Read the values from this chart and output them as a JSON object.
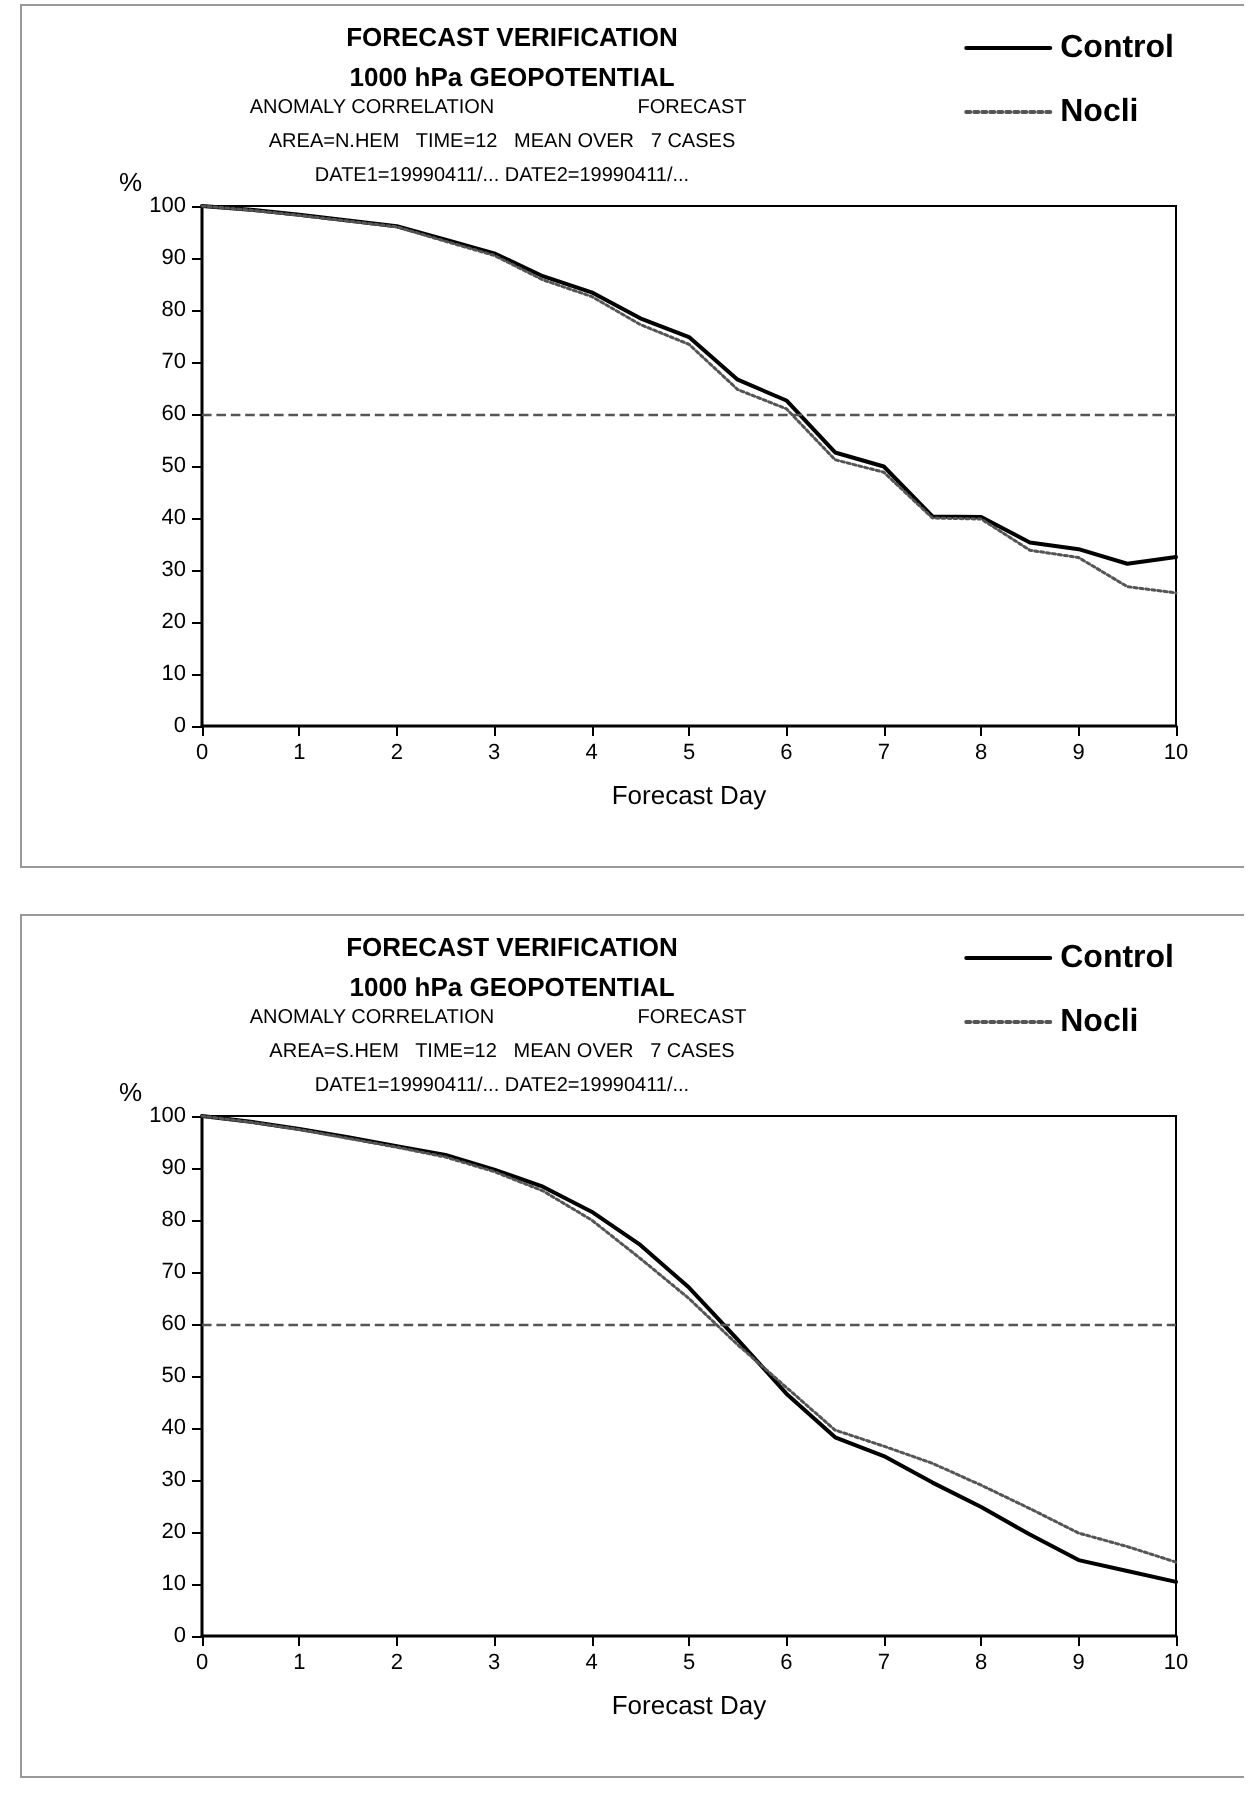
{
  "chart_data": [
    {
      "type": "line",
      "title": "FORECAST VERIFICATION",
      "subtitle": "1000 hPa GEOPOTENTIAL",
      "annotations": [
        "ANOMALY CORRELATION",
        "FORECAST",
        "AREA=N.HEM   TIME=12   MEAN OVER   7 CASES",
        "DATE1=19990411/... DATE2=19990411/..."
      ],
      "xlabel": "Forecast Day",
      "ylabel": "%",
      "x": [
        0,
        0.5,
        1,
        1.5,
        2,
        2.5,
        3,
        3.5,
        4,
        4.5,
        5,
        5.5,
        6,
        6.5,
        7,
        7.5,
        8,
        8.5,
        9,
        9.5,
        10
      ],
      "series": [
        {
          "name": "Control",
          "color": "#000000",
          "line_style": "solid",
          "values": [
            100,
            99.3,
            98.3,
            97.2,
            96.1,
            93.5,
            90.9,
            86.5,
            83.4,
            78.4,
            74.8,
            66.6,
            62.6,
            52.6,
            49.9,
            40.3,
            40.2,
            35.3,
            34.0,
            31.2,
            32.5
          ]
        },
        {
          "name": "Nocli",
          "color": "#555555",
          "line_style": "dotted",
          "values": [
            100,
            99.2,
            98.2,
            97.1,
            96.0,
            93.2,
            90.5,
            85.8,
            82.6,
            77.2,
            73.4,
            64.7,
            61.0,
            51.2,
            48.8,
            40.0,
            39.8,
            33.8,
            32.4,
            26.8,
            25.6
          ]
        }
      ],
      "xlim": [
        0,
        10
      ],
      "xticks": [
        0,
        1,
        2,
        3,
        4,
        5,
        6,
        7,
        8,
        9,
        10
      ],
      "ylim": [
        0,
        100
      ],
      "yticks": [
        0,
        10,
        20,
        30,
        40,
        50,
        60,
        70,
        80,
        90,
        100
      ],
      "ref_lines": [
        {
          "axis": "y",
          "value": 60,
          "color": "#555555",
          "line_style": "dashed"
        }
      ],
      "grid": false,
      "legend": "top right",
      "marker": "none"
    },
    {
      "type": "line",
      "title": "FORECAST VERIFICATION",
      "subtitle": "1000 hPa GEOPOTENTIAL",
      "annotations": [
        "ANOMALY CORRELATION",
        "FORECAST",
        "AREA=S.HEM   TIME=12   MEAN OVER   7 CASES",
        "DATE1=19990411/... DATE2=19990411/..."
      ],
      "xlabel": "Forecast Day",
      "ylabel": "%",
      "x": [
        0,
        0.5,
        1,
        1.5,
        2,
        2.5,
        3,
        3.5,
        4,
        4.5,
        5,
        5.5,
        6,
        6.5,
        7,
        7.5,
        8,
        8.5,
        9,
        9.5,
        10
      ],
      "series": [
        {
          "name": "Control",
          "color": "#000000",
          "line_style": "solid",
          "values": [
            100,
            98.9,
            97.5,
            95.9,
            94.2,
            92.5,
            89.7,
            86.4,
            81.6,
            75.2,
            67.0,
            57.0,
            46.6,
            38.2,
            34.6,
            29.5,
            24.8,
            19.5,
            14.6,
            12.5,
            10.4
          ]
        },
        {
          "name": "Nocli",
          "color": "#555555",
          "line_style": "dotted",
          "values": [
            100,
            98.8,
            97.4,
            95.7,
            94.0,
            92.1,
            89.3,
            85.6,
            80.0,
            72.6,
            64.9,
            56.0,
            47.8,
            39.6,
            36.5,
            33.2,
            29.0,
            24.5,
            19.8,
            17.2,
            14.2
          ]
        }
      ],
      "xlim": [
        0,
        10
      ],
      "xticks": [
        0,
        1,
        2,
        3,
        4,
        5,
        6,
        7,
        8,
        9,
        10
      ],
      "ylim": [
        0,
        100
      ],
      "yticks": [
        0,
        10,
        20,
        30,
        40,
        50,
        60,
        70,
        80,
        90,
        100
      ],
      "ref_lines": [
        {
          "axis": "y",
          "value": 60,
          "color": "#555555",
          "line_style": "dashed"
        }
      ],
      "grid": false,
      "legend": "top right",
      "marker": "none"
    }
  ]
}
